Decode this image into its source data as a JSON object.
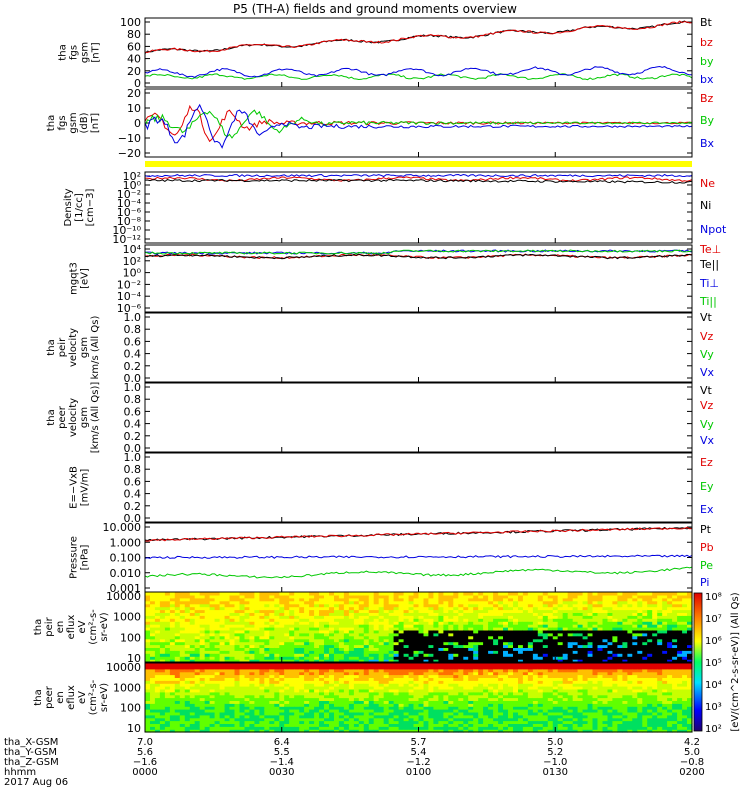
{
  "title": "P5 (TH-A) fields and ground moments overview",
  "colors": {
    "black": "#000000",
    "red": "#e00000",
    "green": "#00c800",
    "blue": "#0000e0",
    "yellow": "#ffff00"
  },
  "chart_data": [
    {
      "type": "line",
      "id": "fgs_gsm",
      "ylabel": [
        "tha",
        "fgs",
        "gsm",
        "[nT]"
      ],
      "ylim": [
        -10,
        100
      ],
      "yticks": [
        "100",
        "80",
        "60",
        "40",
        "20",
        "0"
      ],
      "series": [
        {
          "name": "Bt",
          "color": "black"
        },
        {
          "name": "bz",
          "color": "red"
        },
        {
          "name": "by",
          "color": "green"
        },
        {
          "name": "bx",
          "color": "blue"
        }
      ]
    },
    {
      "type": "line",
      "id": "fgs_dsl",
      "ylabel": [
        "tha",
        "fgs",
        "gsm",
        "(dB)",
        "[nT]"
      ],
      "ylim": [
        -25,
        25
      ],
      "yticks": [
        "20",
        "10",
        "0",
        "−10",
        "−20"
      ],
      "series": [
        {
          "name": "Bz",
          "color": "red"
        },
        {
          "name": "By",
          "color": "green"
        },
        {
          "name": "Bx",
          "color": "blue"
        }
      ]
    },
    {
      "type": "line",
      "id": "density",
      "ylabel": [
        "Density",
        "[1/cc]",
        "[cm−3]"
      ],
      "log": true,
      "yticks": [
        "10²",
        "10⁰",
        "10⁻²",
        "10⁻⁴",
        "10⁻⁶",
        "10⁻⁸",
        "10⁻¹⁰",
        "10⁻¹²"
      ],
      "series": [
        {
          "name": "Ne",
          "color": "red"
        },
        {
          "name": "Ni",
          "color": "black"
        },
        {
          "name": "Npot",
          "color": "blue"
        }
      ]
    },
    {
      "type": "line",
      "id": "temperature",
      "ylabel": [
        "mgqt3",
        "[eV]"
      ],
      "log": true,
      "yticks": [
        "10⁴",
        "10²",
        "10⁰",
        "10⁻²",
        "10⁻⁴",
        "10⁻⁶"
      ],
      "series": [
        {
          "name": "Te⊥",
          "color": "red"
        },
        {
          "name": "Te||",
          "color": "black"
        },
        {
          "name": "Ti⊥",
          "color": "blue"
        },
        {
          "name": "Ti||",
          "color": "green"
        }
      ]
    },
    {
      "type": "line",
      "id": "peir_vel",
      "ylabel": [
        "tha",
        "peir",
        "velocity",
        "gsm",
        "km/s (All Qs)"
      ],
      "ylim": [
        0,
        1
      ],
      "yticks": [
        "1.0",
        "0.8",
        "0.6",
        "0.4",
        "0.2",
        "0.0"
      ],
      "series": [
        {
          "name": "Vt",
          "color": "black"
        },
        {
          "name": "Vz",
          "color": "red"
        },
        {
          "name": "Vy",
          "color": "green"
        },
        {
          "name": "Vx",
          "color": "blue"
        }
      ]
    },
    {
      "type": "line",
      "id": "peer_vel",
      "ylabel": [
        "tha",
        "peer",
        "velocity",
        "gsm",
        "[km/s (All Qs)]"
      ],
      "ylim": [
        0,
        1
      ],
      "yticks": [
        "1.0",
        "0.8",
        "0.6",
        "0.4",
        "0.2",
        "0.0"
      ],
      "series": [
        {
          "name": "Vt",
          "color": "black"
        },
        {
          "name": "Vz",
          "color": "red"
        },
        {
          "name": "Vy",
          "color": "green"
        },
        {
          "name": "Vx",
          "color": "blue"
        }
      ]
    },
    {
      "type": "line",
      "id": "efield",
      "ylabel": [
        "E=−VxB",
        "[mV/m]"
      ],
      "ylim": [
        0,
        1
      ],
      "yticks": [
        "1.0",
        "0.8",
        "0.6",
        "0.4",
        "0.2",
        "0.0"
      ],
      "series": [
        {
          "name": "Ez",
          "color": "red"
        },
        {
          "name": "Ey",
          "color": "green"
        },
        {
          "name": "Ex",
          "color": "blue"
        }
      ]
    },
    {
      "type": "line",
      "id": "pressure",
      "ylabel": [
        "Pressure",
        "[nPa]"
      ],
      "log": true,
      "yticks": [
        "10.000",
        "1.000",
        "0.100",
        "0.010",
        "0.001"
      ],
      "series": [
        {
          "name": "Pt",
          "color": "black"
        },
        {
          "name": "Pb",
          "color": "red"
        },
        {
          "name": "Pe",
          "color": "green"
        },
        {
          "name": "Pi",
          "color": "blue"
        }
      ]
    },
    {
      "type": "heatmap",
      "id": "peir_spec",
      "ylabel": [
        "tha",
        "peir",
        "en",
        "eflux",
        "eV",
        "(cm²-s-",
        "sr-eV)"
      ],
      "yticks": [
        "10000",
        "1000",
        "100",
        "10"
      ]
    },
    {
      "type": "heatmap",
      "id": "peer_spec",
      "ylabel": [
        "tha",
        "peer",
        "en",
        "eflux",
        "eV",
        "(cm²-s-",
        "sr-eV)"
      ],
      "yticks": [
        "10000",
        "1000",
        "100",
        "10"
      ]
    }
  ],
  "colorbar": {
    "ticks": [
      "10⁸",
      "10⁷",
      "10⁶",
      "10⁵",
      "10⁴",
      "10³",
      "10²"
    ],
    "label": "[eV/(cm^2-s-sr-eV)] (All Qs)"
  },
  "xaxis": {
    "rows": [
      {
        "label": "tha_X-GSM",
        "values": [
          "7.0",
          "6.4",
          "5.7",
          "5.0",
          "4.2"
        ]
      },
      {
        "label": "tha_Y-GSM",
        "values": [
          "5.6",
          "5.5",
          "5.4",
          "5.2",
          "5.0"
        ]
      },
      {
        "label": "tha_Z-GSM",
        "values": [
          "−1.6",
          "−1.4",
          "−1.2",
          "−1.0",
          "−0.8"
        ]
      },
      {
        "label": "hhmm",
        "values": [
          "0000",
          "0030",
          "0100",
          "0130",
          "0200"
        ]
      }
    ],
    "date": "2017 Aug 06"
  }
}
